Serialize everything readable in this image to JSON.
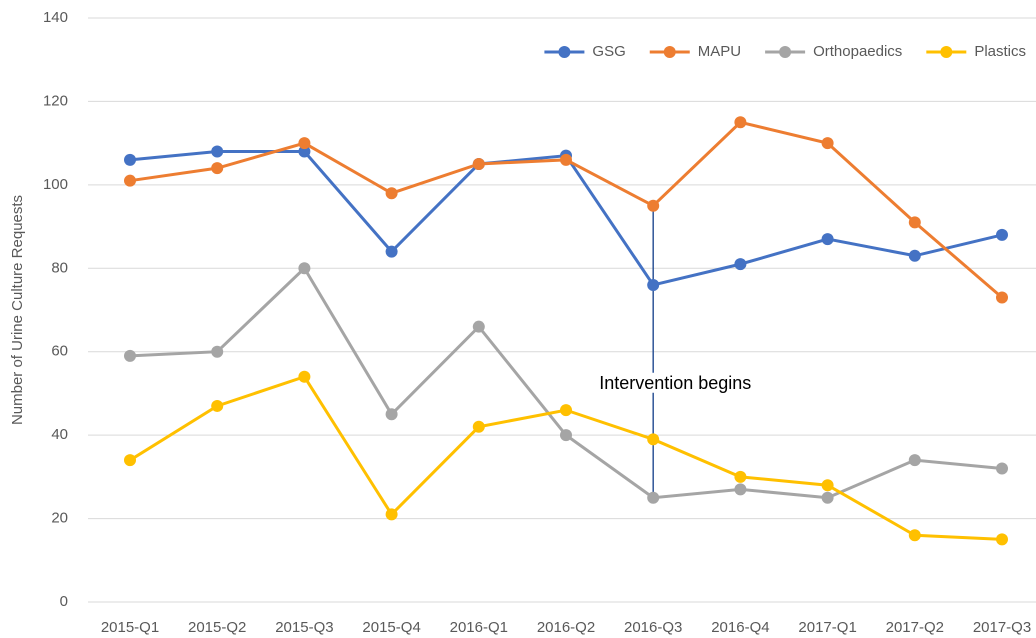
{
  "chart_data": {
    "type": "line",
    "y_label": "Number of Urine Culture Requests",
    "categories": [
      "2015-Q1",
      "2015-Q2",
      "2015-Q3",
      "2015-Q4",
      "2016-Q1",
      "2016-Q2",
      "2016-Q3",
      "2016-Q4",
      "2017-Q1",
      "2017-Q2",
      "2017-Q3"
    ],
    "series": [
      {
        "name": "GSG",
        "color": "#4472c4",
        "values": [
          106,
          108,
          108,
          84,
          105,
          107,
          76,
          81,
          87,
          83,
          88
        ]
      },
      {
        "name": "MAPU",
        "color": "#ed7d31",
        "values": [
          101,
          104,
          110,
          98,
          105,
          106,
          95,
          115,
          110,
          91,
          73
        ]
      },
      {
        "name": "Orthopaedics",
        "color": "#a5a5a5",
        "values": [
          59,
          60,
          80,
          45,
          66,
          40,
          25,
          27,
          25,
          34,
          32
        ]
      },
      {
        "name": "Plastics",
        "color": "#ffc000",
        "values": [
          34,
          47,
          54,
          21,
          42,
          46,
          39,
          30,
          28,
          16,
          15
        ]
      }
    ],
    "ylim": [
      0,
      140
    ],
    "yticks": [
      0,
      20,
      40,
      60,
      80,
      100,
      120,
      140
    ],
    "grid": true,
    "legend": "top-right",
    "annotation": {
      "text": "Intervention begins",
      "x": "2016-Q3"
    }
  }
}
